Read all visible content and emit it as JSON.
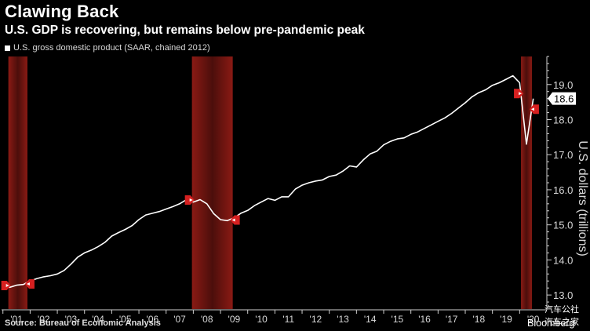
{
  "header": {
    "title": "Clawing Back",
    "subtitle": "U.S. GDP is recovering, but remains below pre-pandemic peak"
  },
  "legend": {
    "label": "U.S. gross domestic product (SAAR, chained 2012)"
  },
  "footer": {
    "source": "Source: Bureau of Economic Analysis",
    "brand": "Bloomberg",
    "watermark_line1": "汽车公社",
    "watermark_line2": "汽车之家"
  },
  "colors": {
    "background": "#000000",
    "line": "#ffffff",
    "recession_band": "#8a1a14",
    "marker": "#d62020",
    "axis_text": "#d8d8d8"
  },
  "chart_data": {
    "type": "line",
    "title": "Clawing Back",
    "subtitle": "U.S. GDP is recovering, but remains below pre-pandemic peak",
    "ylabel": "U.S. dollars (trillions)",
    "xlabel": "",
    "ylim": [
      12.6,
      19.8
    ],
    "xlim": [
      2000.95,
      2021.0
    ],
    "yticks": [
      13.0,
      14.0,
      15.0,
      16.0,
      17.0,
      18.0,
      19.0
    ],
    "ytick_labels": [
      "13.0",
      "14.0",
      "15.0",
      "16.0",
      "17.0",
      "18.0",
      "19.0"
    ],
    "xticks": [
      2001.5,
      2002.5,
      2003.5,
      2004.5,
      2005.5,
      2006.5,
      2007.5,
      2008.5,
      2009.5,
      2010.5,
      2011.5,
      2012.5,
      2013.5,
      2014.5,
      2015.5,
      2016.5,
      2017.5,
      2018.5,
      2019.5,
      2020.5
    ],
    "xtick_labels": [
      "'01",
      "'02",
      "'03",
      "'04",
      "'05",
      "'06",
      "'07",
      "'08",
      "'09",
      "'10",
      "'11",
      "'12",
      "'13",
      "'14",
      "'15",
      "'16",
      "'17",
      "'18",
      "'19",
      "'20"
    ],
    "last_value_label": "18.6",
    "grid": false,
    "recessions": [
      {
        "start": 2001.2,
        "end": 2001.9
      },
      {
        "start": 2007.95,
        "end": 2009.45
      },
      {
        "start": 2020.05,
        "end": 2020.45
      }
    ],
    "series": [
      {
        "name": "U.S. gross domestic product (SAAR, chained 2012)",
        "x": [
          2001.0,
          2001.25,
          2001.5,
          2001.75,
          2002.0,
          2002.25,
          2002.5,
          2002.75,
          2003.0,
          2003.25,
          2003.5,
          2003.75,
          2004.0,
          2004.25,
          2004.5,
          2004.75,
          2005.0,
          2005.25,
          2005.5,
          2005.75,
          2006.0,
          2006.25,
          2006.5,
          2006.75,
          2007.0,
          2007.25,
          2007.5,
          2007.75,
          2008.0,
          2008.25,
          2008.5,
          2008.75,
          2009.0,
          2009.25,
          2009.5,
          2009.75,
          2010.0,
          2010.25,
          2010.5,
          2010.75,
          2011.0,
          2011.25,
          2011.5,
          2011.75,
          2012.0,
          2012.25,
          2012.5,
          2012.75,
          2013.0,
          2013.25,
          2013.5,
          2013.75,
          2014.0,
          2014.25,
          2014.5,
          2014.75,
          2015.0,
          2015.25,
          2015.5,
          2015.75,
          2016.0,
          2016.25,
          2016.5,
          2016.75,
          2017.0,
          2017.25,
          2017.5,
          2017.75,
          2018.0,
          2018.25,
          2018.5,
          2018.75,
          2019.0,
          2019.25,
          2019.5,
          2019.75,
          2020.0,
          2020.25,
          2020.5
        ],
        "values": [
          13.25,
          13.22,
          13.28,
          13.3,
          13.4,
          13.47,
          13.52,
          13.55,
          13.6,
          13.7,
          13.88,
          14.08,
          14.2,
          14.28,
          14.38,
          14.5,
          14.68,
          14.78,
          14.87,
          14.98,
          15.15,
          15.28,
          15.33,
          15.38,
          15.45,
          15.52,
          15.6,
          15.72,
          15.65,
          15.72,
          15.6,
          15.32,
          15.15,
          15.12,
          15.2,
          15.33,
          15.41,
          15.55,
          15.65,
          15.75,
          15.7,
          15.8,
          15.8,
          16.02,
          16.13,
          16.2,
          16.25,
          16.28,
          16.38,
          16.42,
          16.53,
          16.68,
          16.65,
          16.85,
          17.02,
          17.1,
          17.28,
          17.38,
          17.45,
          17.48,
          17.58,
          17.65,
          17.75,
          17.85,
          17.95,
          18.05,
          18.18,
          18.33,
          18.48,
          18.65,
          18.77,
          18.85,
          18.98,
          19.05,
          19.15,
          19.25,
          19.05,
          17.3,
          18.6
        ]
      }
    ]
  }
}
